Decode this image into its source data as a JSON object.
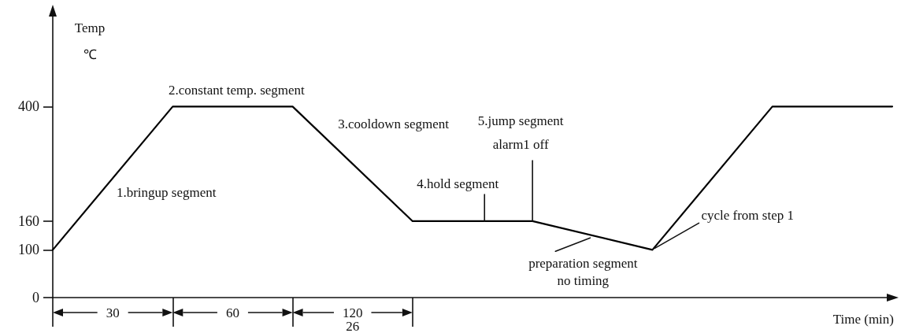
{
  "chart_data": {
    "type": "line",
    "xlabel": "Time (min)",
    "ylabel": "Temp\n℃",
    "categories": [
      null,
      null,
      null,
      null,
      null,
      null,
      null,
      null
    ],
    "values": [
      100,
      400,
      400,
      160,
      160,
      100,
      400,
      400
    ],
    "color": "#000000",
    "ylim": [
      0,
      600
    ],
    "yticks": [
      0,
      100,
      160,
      400
    ],
    "tick_labels": "y",
    "grid": false,
    "marker": "none",
    "line_style": "solid",
    "annotations": [
      "1.bringup segment",
      "2.constant temp. segment",
      "3.cooldown segment",
      "4.hold segment",
      "5.jump segment\nalarm1 off",
      "preparation segment\nno timing",
      "cycle from step 1",
      "30",
      "60",
      "120",
      "26"
    ]
  }
}
